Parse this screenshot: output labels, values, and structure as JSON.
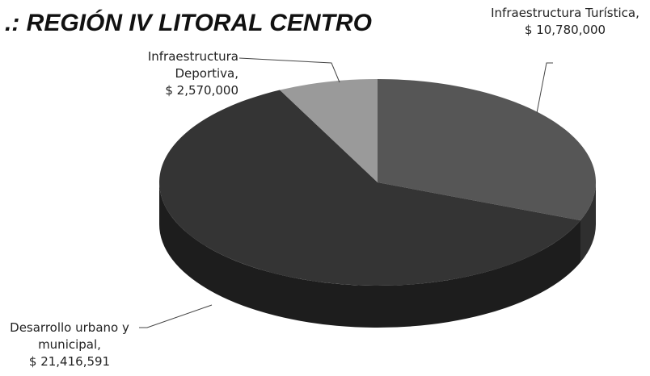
{
  "chart_data": {
    "type": "pie",
    "title": ".: REGIÓN IV LITORAL CENTRO",
    "categories": [
      "Infraestructura Turística,",
      "Desarrollo urbano y municipal,",
      "Infraestructura Deportiva,"
    ],
    "values": [
      10780000,
      21416591,
      2570000
    ],
    "value_labels": [
      "$ 10,780,000",
      "$ 21,416,591",
      "$ 2,570,000"
    ],
    "colors": [
      "#565656",
      "#343434",
      "#9a9a9a"
    ]
  }
}
